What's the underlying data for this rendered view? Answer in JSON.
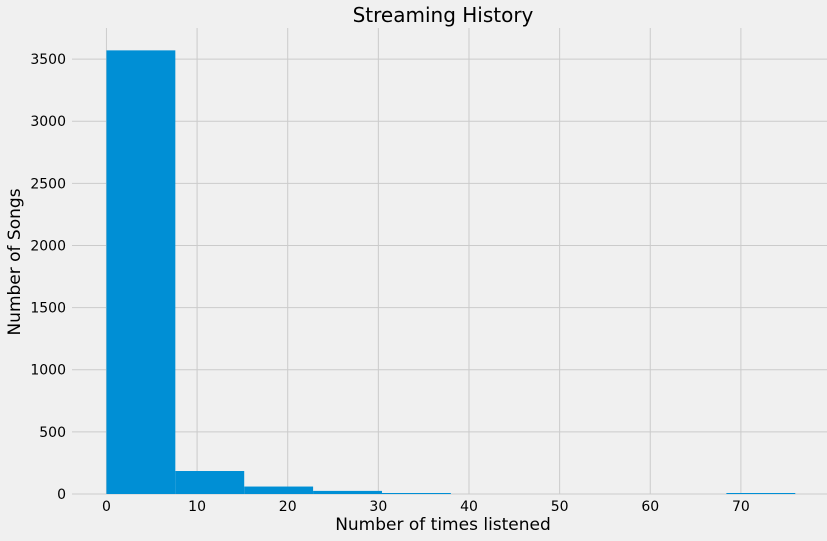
{
  "chart_data": {
    "type": "bar",
    "title": "Streaming History",
    "xlabel": "Number of times listened",
    "ylabel": "Number of Songs",
    "xlim": [
      -3.8,
      79.5
    ],
    "ylim": [
      0,
      3750
    ],
    "x_ticks": [
      0,
      10,
      20,
      30,
      40,
      50,
      60,
      70
    ],
    "y_ticks": [
      0,
      500,
      1000,
      1500,
      2000,
      2500,
      3000,
      3500
    ],
    "bins": [
      {
        "x0": 0,
        "x1": 7.6,
        "value": 3570
      },
      {
        "x0": 7.6,
        "x1": 15.2,
        "value": 185
      },
      {
        "x0": 15.2,
        "x1": 22.8,
        "value": 60
      },
      {
        "x0": 22.8,
        "x1": 30.4,
        "value": 25
      },
      {
        "x0": 30.4,
        "x1": 38.0,
        "value": 8
      },
      {
        "x0": 38.0,
        "x1": 45.6,
        "value": 0
      },
      {
        "x0": 45.6,
        "x1": 53.2,
        "value": 0
      },
      {
        "x0": 53.2,
        "x1": 60.8,
        "value": 0
      },
      {
        "x0": 60.8,
        "x1": 68.4,
        "value": 0
      },
      {
        "x0": 68.4,
        "x1": 76.0,
        "value": 1
      }
    ],
    "grid": true,
    "colors": {
      "bar": "#008fd5",
      "background": "#f0f0f0",
      "grid": "#cbcbcb"
    }
  }
}
